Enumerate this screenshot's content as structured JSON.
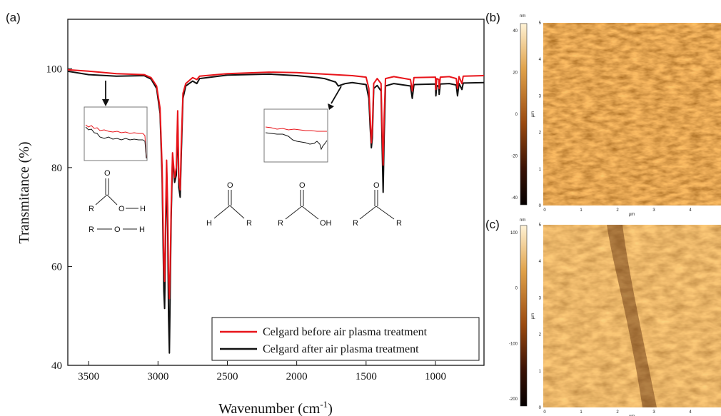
{
  "panels": {
    "a": "(a)",
    "b": "(b)",
    "c": "(c)"
  },
  "chart_data": {
    "type": "line",
    "xlabel": "Wavenumber (cm",
    "xlabel_sup": "-1",
    "xlabel_close": ")",
    "ylabel": "Transmitance (%)",
    "xlim": [
      3650,
      650
    ],
    "ylim": [
      40,
      110
    ],
    "x_reversed": true,
    "x_ticks": [
      3500,
      3000,
      2500,
      2000,
      1500,
      1000
    ],
    "y_ticks": [
      40,
      60,
      80,
      100
    ],
    "legend_position": "bottom-right",
    "series": [
      {
        "name": "Celgard before air plasma treatment",
        "color": "#e8141a",
        "points": [
          [
            3650,
            99.8
          ],
          [
            3500,
            99.5
          ],
          [
            3300,
            99.0
          ],
          [
            3100,
            98.8
          ],
          [
            3050,
            98.2
          ],
          [
            3010,
            96.5
          ],
          [
            2985,
            92.0
          ],
          [
            2970,
            80.0
          ],
          [
            2958,
            60.0
          ],
          [
            2952,
            57.0
          ],
          [
            2945,
            70.0
          ],
          [
            2938,
            81.5
          ],
          [
            2930,
            72.0
          ],
          [
            2924,
            58.0
          ],
          [
            2918,
            53.5
          ],
          [
            2912,
            60.0
          ],
          [
            2905,
            72.0
          ],
          [
            2895,
            83.0
          ],
          [
            2880,
            78.0
          ],
          [
            2868,
            80.0
          ],
          [
            2858,
            91.5
          ],
          [
            2850,
            78.0
          ],
          [
            2840,
            75.5
          ],
          [
            2832,
            85.0
          ],
          [
            2820,
            95.0
          ],
          [
            2800,
            97.0
          ],
          [
            2750,
            98.2
          ],
          [
            2720,
            97.8
          ],
          [
            2700,
            98.5
          ],
          [
            2500,
            99.0
          ],
          [
            2200,
            99.3
          ],
          [
            2000,
            99.2
          ],
          [
            1800,
            98.9
          ],
          [
            1600,
            98.6
          ],
          [
            1500,
            98.3
          ],
          [
            1480,
            96.0
          ],
          [
            1470,
            90.0
          ],
          [
            1462,
            85.0
          ],
          [
            1455,
            88.0
          ],
          [
            1445,
            97.0
          ],
          [
            1420,
            98.0
          ],
          [
            1392,
            97.0
          ],
          [
            1385,
            88.0
          ],
          [
            1377,
            80.5
          ],
          [
            1370,
            90.0
          ],
          [
            1360,
            98.0
          ],
          [
            1300,
            98.4
          ],
          [
            1180,
            97.8
          ],
          [
            1167,
            95.5
          ],
          [
            1155,
            98.2
          ],
          [
            1000,
            98.3
          ],
          [
            997,
            95.8
          ],
          [
            990,
            98.0
          ],
          [
            975,
            97.8
          ],
          [
            973,
            96.0
          ],
          [
            965,
            98.3
          ],
          [
            900,
            98.4
          ],
          [
            850,
            98.0
          ],
          [
            841,
            96.0
          ],
          [
            830,
            98.4
          ],
          [
            809,
            97.0
          ],
          [
            800,
            98.5
          ],
          [
            650,
            98.6
          ]
        ]
      },
      {
        "name": "Celgard after air plasma treatment",
        "color": "#111111",
        "points": [
          [
            3650,
            99.5
          ],
          [
            3500,
            98.8
          ],
          [
            3300,
            98.5
          ],
          [
            3100,
            98.6
          ],
          [
            3050,
            97.9
          ],
          [
            3010,
            96.0
          ],
          [
            2985,
            91.0
          ],
          [
            2970,
            78.0
          ],
          [
            2958,
            55.0
          ],
          [
            2952,
            51.5
          ],
          [
            2945,
            66.0
          ],
          [
            2938,
            80.0
          ],
          [
            2930,
            68.0
          ],
          [
            2924,
            50.0
          ],
          [
            2918,
            42.5
          ],
          [
            2912,
            55.0
          ],
          [
            2905,
            70.0
          ],
          [
            2895,
            82.0
          ],
          [
            2880,
            77.0
          ],
          [
            2868,
            78.5
          ],
          [
            2858,
            89.5
          ],
          [
            2850,
            76.0
          ],
          [
            2840,
            74.0
          ],
          [
            2832,
            83.0
          ],
          [
            2820,
            94.0
          ],
          [
            2800,
            96.5
          ],
          [
            2750,
            97.5
          ],
          [
            2720,
            97.0
          ],
          [
            2700,
            98.0
          ],
          [
            2500,
            98.7
          ],
          [
            2200,
            98.9
          ],
          [
            2000,
            98.6
          ],
          [
            1850,
            98.2
          ],
          [
            1800,
            98.0
          ],
          [
            1720,
            97.3
          ],
          [
            1700,
            96.5
          ],
          [
            1650,
            97.0
          ],
          [
            1600,
            97.2
          ],
          [
            1500,
            96.8
          ],
          [
            1480,
            94.0
          ],
          [
            1470,
            88.0
          ],
          [
            1462,
            84.0
          ],
          [
            1455,
            86.0
          ],
          [
            1445,
            96.0
          ],
          [
            1420,
            96.6
          ],
          [
            1392,
            95.5
          ],
          [
            1385,
            85.0
          ],
          [
            1377,
            75.0
          ],
          [
            1370,
            86.0
          ],
          [
            1360,
            96.5
          ],
          [
            1300,
            97.0
          ],
          [
            1180,
            96.5
          ],
          [
            1167,
            94.0
          ],
          [
            1155,
            96.8
          ],
          [
            1000,
            96.9
          ],
          [
            997,
            94.5
          ],
          [
            990,
            96.6
          ],
          [
            975,
            96.4
          ],
          [
            973,
            94.8
          ],
          [
            965,
            96.9
          ],
          [
            900,
            97.0
          ],
          [
            850,
            96.7
          ],
          [
            841,
            94.5
          ],
          [
            830,
            97.0
          ],
          [
            809,
            95.8
          ],
          [
            800,
            97.1
          ],
          [
            650,
            97.2
          ]
        ]
      }
    ],
    "annotations": {
      "inset_left_arrow_at": [
        3400,
        98.3
      ],
      "inset_right_arrow_at": [
        1760,
        97.6
      ]
    }
  },
  "structures": {
    "carboxylic_acid_h": {
      "O": "O",
      "R": "R",
      "O2": "O",
      "H": "H"
    },
    "alcohol": {
      "R": "R",
      "O": "O",
      "H": "H"
    },
    "aldehyde": {
      "O": "O",
      "H": "H",
      "R": "R"
    },
    "carboxylic_acid": {
      "O": "O",
      "R": "R",
      "OH": "OH"
    },
    "ketone": {
      "O": "O",
      "R1": "R",
      "R2": "R"
    }
  },
  "afm_b": {
    "unit": "nm",
    "scale_ticks": [
      "40",
      "20",
      "0",
      "-20",
      "-40"
    ],
    "y_ticks": [
      "5",
      "4",
      "3",
      "2",
      "1",
      "0"
    ],
    "x_ticks": [
      "0",
      "1",
      "2",
      "3",
      "4"
    ],
    "y_unit": "µm",
    "x_unit": "µm"
  },
  "afm_c": {
    "unit": "nm",
    "scale_ticks": [
      "100",
      "0",
      "-100",
      "-200"
    ],
    "y_ticks": [
      "5",
      "4",
      "3",
      "2",
      "1",
      "0"
    ],
    "x_ticks": [
      "0",
      "1",
      "2",
      "3",
      "4"
    ],
    "y_unit": "µm",
    "x_unit": "µm"
  }
}
